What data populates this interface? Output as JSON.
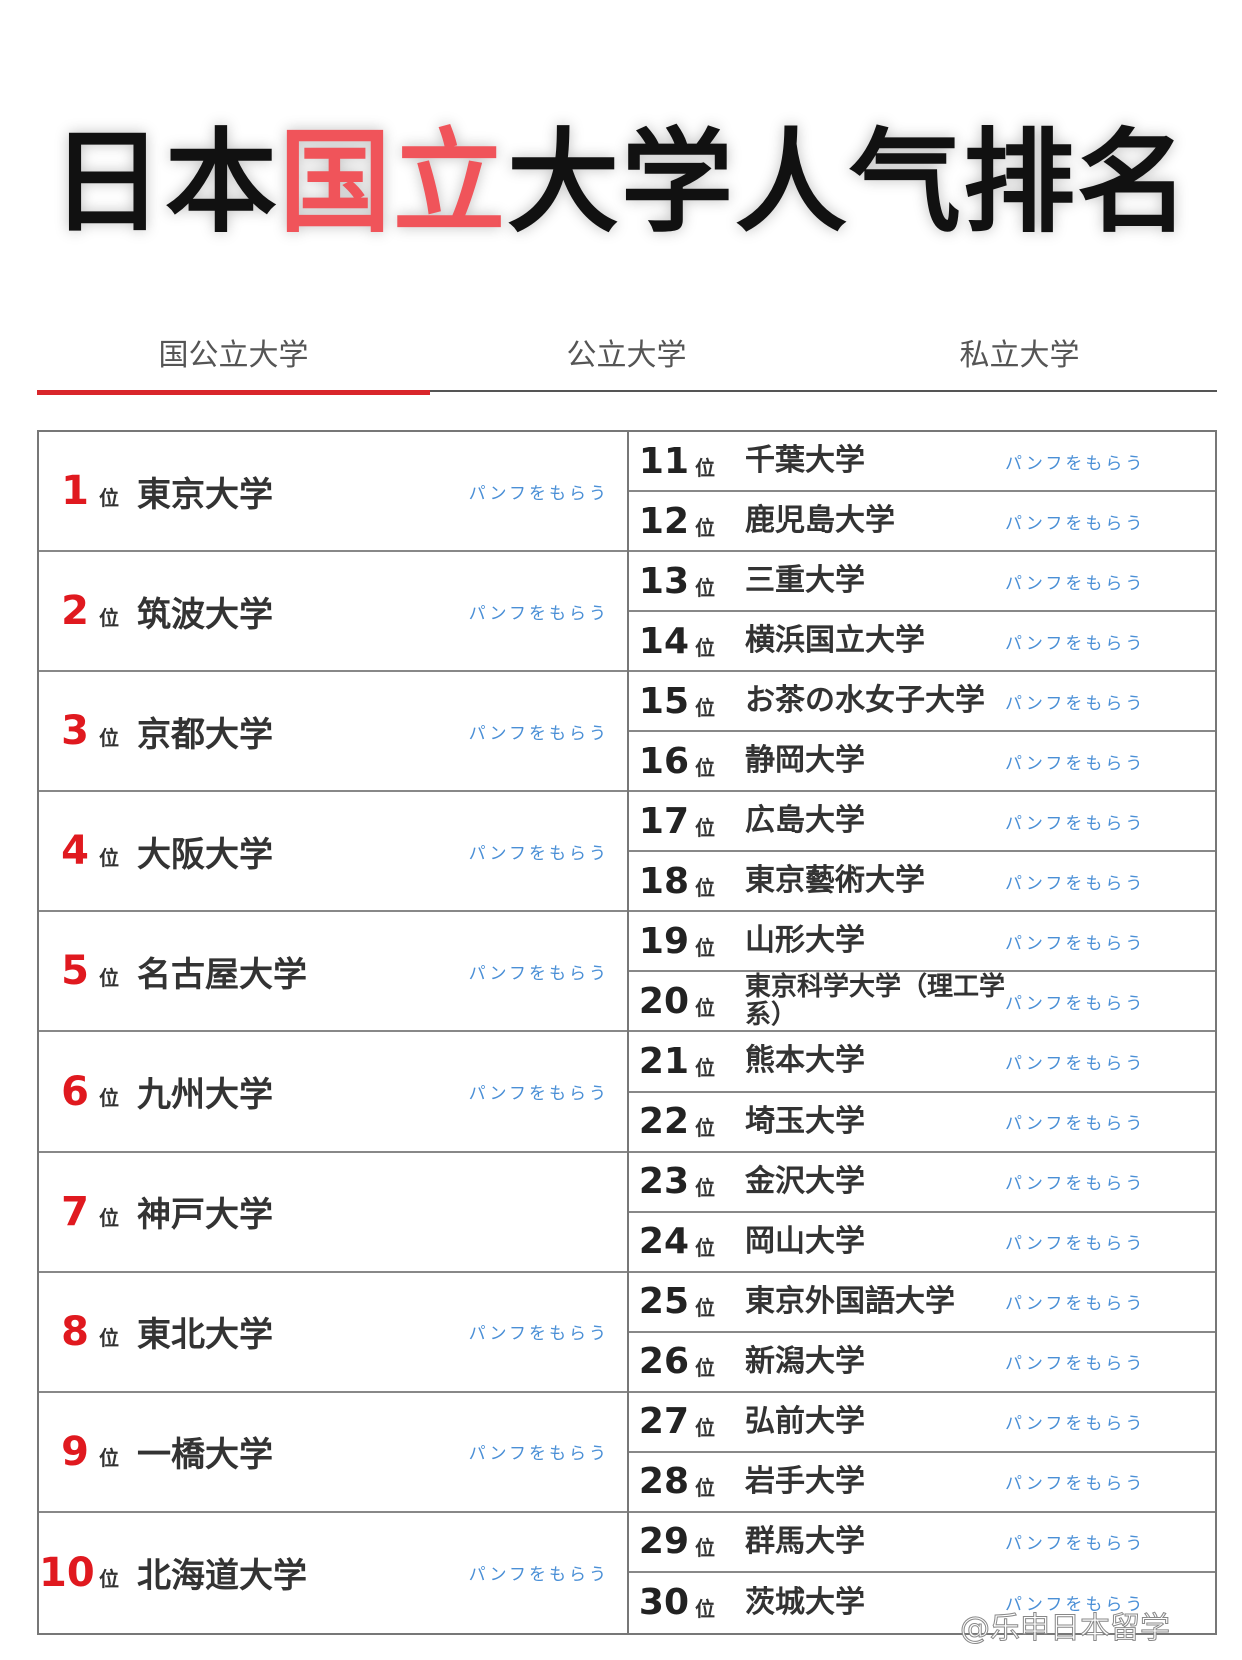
{
  "title": {
    "part1": "日本",
    "part2": "国立",
    "part3": "大学人气排名"
  },
  "tabs": [
    "国公立大学",
    "公立大学",
    "私立大学"
  ],
  "pos_label": "位",
  "pamphlet_label": "パンフをもらう",
  "accent": "#d9262b",
  "left_rankings": [
    {
      "rank": "1",
      "name": "東京大学",
      "pamphlet": true
    },
    {
      "rank": "2",
      "name": "筑波大学",
      "pamphlet": true
    },
    {
      "rank": "3",
      "name": "京都大学",
      "pamphlet": true
    },
    {
      "rank": "4",
      "name": "大阪大学",
      "pamphlet": true
    },
    {
      "rank": "5",
      "name": "名古屋大学",
      "pamphlet": true
    },
    {
      "rank": "6",
      "name": "九州大学",
      "pamphlet": true
    },
    {
      "rank": "7",
      "name": "神戸大学",
      "pamphlet": false
    },
    {
      "rank": "8",
      "name": "東北大学",
      "pamphlet": true
    },
    {
      "rank": "9",
      "name": "一橋大学",
      "pamphlet": true
    },
    {
      "rank": "10",
      "name": "北海道大学",
      "pamphlet": true
    }
  ],
  "right_rankings": [
    {
      "rank": "11",
      "name": "千葉大学"
    },
    {
      "rank": "12",
      "name": "鹿児島大学"
    },
    {
      "rank": "13",
      "name": "三重大学"
    },
    {
      "rank": "14",
      "name": "横浜国立大学"
    },
    {
      "rank": "15",
      "name": "お茶の水女子大学"
    },
    {
      "rank": "16",
      "name": "静岡大学"
    },
    {
      "rank": "17",
      "name": "広島大学"
    },
    {
      "rank": "18",
      "name": "東京藝術大学"
    },
    {
      "rank": "19",
      "name": "山形大学"
    },
    {
      "rank": "20",
      "name": "東京科学大学（理工学系）"
    },
    {
      "rank": "21",
      "name": "熊本大学"
    },
    {
      "rank": "22",
      "name": "埼玉大学"
    },
    {
      "rank": "23",
      "name": "金沢大学"
    },
    {
      "rank": "24",
      "name": "岡山大学"
    },
    {
      "rank": "25",
      "name": "東京外国語大学"
    },
    {
      "rank": "26",
      "name": "新潟大学"
    },
    {
      "rank": "27",
      "name": "弘前大学"
    },
    {
      "rank": "28",
      "name": "岩手大学"
    },
    {
      "rank": "29",
      "name": "群馬大学"
    },
    {
      "rank": "30",
      "name": "茨城大学"
    }
  ],
  "watermark": "@乐申日本留学"
}
